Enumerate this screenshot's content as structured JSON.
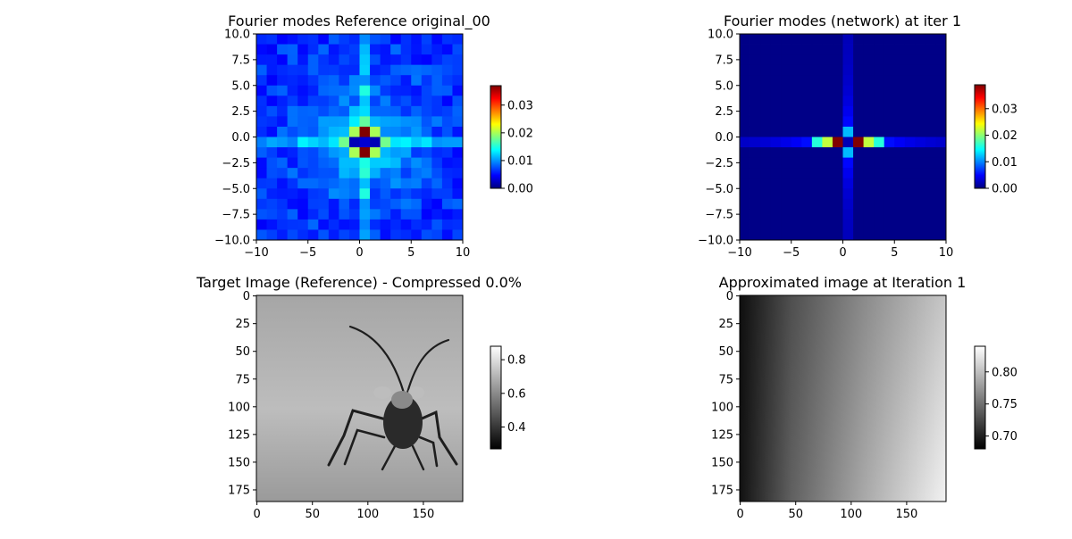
{
  "chart_data": [
    {
      "type": "heatmap",
      "title": "Fourier modes Reference original_00",
      "xlim": [
        -10,
        10
      ],
      "ylim": [
        -10,
        10
      ],
      "xticks": [
        "−10",
        "−5",
        "0",
        "5",
        "10"
      ],
      "yticks": [
        "10.0",
        "7.5",
        "5.0",
        "2.5",
        "0.0",
        "−2.5",
        "−5.0",
        "−7.5",
        "−10.0"
      ],
      "colormap": "jet",
      "colorbar": {
        "min": 0.0,
        "max": 0.037,
        "ticks": [
          "0.00",
          "0.01",
          "0.02",
          "0.03"
        ]
      },
      "grid_size": 20,
      "center_values": [
        0.037,
        0.02,
        0.018,
        0.015,
        0.013
      ]
    },
    {
      "type": "heatmap",
      "title": "Fourier modes (network) at iter 1",
      "xlim": [
        -10,
        10
      ],
      "ylim": [
        -10,
        10
      ],
      "xticks": [
        "−10",
        "−5",
        "0",
        "5",
        "10"
      ],
      "yticks": [
        "10.0",
        "7.5",
        "5.0",
        "2.5",
        "0.0",
        "−2.5",
        "−5.0",
        "−7.5",
        "−10.0"
      ],
      "colormap": "jet",
      "colorbar": {
        "min": 0.0,
        "max": 0.039,
        "ticks": [
          "0.00",
          "0.01",
          "0.02",
          "0.03"
        ]
      },
      "grid_size": 20,
      "center_values": [
        0.039,
        0.022,
        0.012
      ]
    },
    {
      "type": "image",
      "title": "Target Image (Reference) - Compressed 0.0%",
      "image_size": [
        186,
        186
      ],
      "xticks": [
        "0",
        "50",
        "100",
        "150"
      ],
      "yticks": [
        "0",
        "25",
        "50",
        "75",
        "100",
        "125",
        "150",
        "175"
      ],
      "colormap": "gray",
      "colorbar": {
        "min": 0.27,
        "max": 0.88,
        "ticks": [
          "0.4",
          "0.6",
          "0.8"
        ]
      }
    },
    {
      "type": "image",
      "title": "Approximated image at Iteration 1",
      "image_size": [
        186,
        186
      ],
      "xticks": [
        "0",
        "50",
        "100",
        "150"
      ],
      "yticks": [
        "0",
        "25",
        "50",
        "75",
        "100",
        "125",
        "150",
        "175"
      ],
      "colormap": "gray",
      "colorbar": {
        "min": 0.68,
        "max": 0.84,
        "ticks": [
          "0.70",
          "0.75",
          "0.80"
        ]
      }
    }
  ]
}
